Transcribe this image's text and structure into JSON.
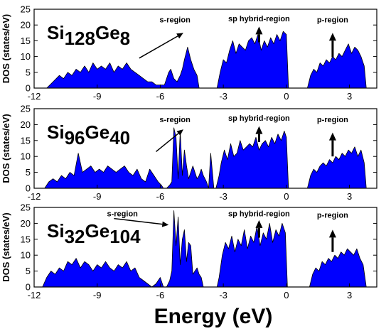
{
  "figure": {
    "xlabel": "Energy (eV)",
    "ylabel": "DOS (states/eV)",
    "colors": {
      "fill": "#0000ff",
      "outline": "#000000",
      "axis": "#000000"
    }
  },
  "chart_data": [
    {
      "type": "area",
      "composition": {
        "a": "Si",
        "a_sub": "128",
        "b": "Ge",
        "b_sub": "8"
      },
      "xlim": [
        -12,
        4.3
      ],
      "ylim": [
        0,
        25
      ],
      "xticks": [
        -12,
        -9,
        -6,
        -3,
        0,
        3
      ],
      "yticks": [
        0,
        5,
        10,
        15,
        20,
        25
      ],
      "xlabel": "",
      "ylabel": "DOS (states/eV)",
      "annotations": [
        {
          "text": "s-region",
          "x": -5.3,
          "y": 20.8,
          "arrow_from": [
            -7.0,
            9.5
          ],
          "arrow_to": [
            -4.9,
            17.5
          ]
        },
        {
          "text": "sp hybrid-region",
          "x": -1.3,
          "y": 21.2,
          "arrow_from": [
            -1.3,
            14.5
          ],
          "arrow_to": [
            -1.3,
            19.5
          ]
        },
        {
          "text": "p-region",
          "x": 2.2,
          "y": 20.8,
          "arrow_from": [
            2.2,
            9.8
          ],
          "arrow_to": [
            2.2,
            17.5
          ]
        }
      ],
      "series": [
        {
          "x": [
            -11.4,
            -11.1,
            -10.8,
            -10.6,
            -10.4,
            -10.2,
            -10.0,
            -9.8,
            -9.6,
            -9.4,
            -9.2,
            -9.0,
            -8.8,
            -8.6,
            -8.4,
            -8.2,
            -8.0,
            -7.8,
            -7.6,
            -7.4,
            -7.2,
            -7.0,
            -6.8,
            -6.6,
            -6.4,
            -6.2,
            -6.0,
            -5.8,
            -5.6,
            -5.5,
            -5.35,
            -5.2,
            -5.05,
            -4.95,
            -4.85,
            -4.7,
            -4.55,
            -4.4,
            -4.25,
            -4.15,
            -3.3,
            -3.15,
            -3.0,
            -2.85,
            -2.7,
            -2.55,
            -2.4,
            -2.25,
            -2.1,
            -1.95,
            -1.8,
            -1.65,
            -1.5,
            -1.35,
            -1.2,
            -1.05,
            -0.9,
            -0.75,
            -0.6,
            -0.45,
            -0.3,
            -0.15,
            0.0,
            0.1,
            1.0,
            1.15,
            1.3,
            1.45,
            1.6,
            1.75,
            1.9,
            2.05,
            2.2,
            2.35,
            2.5,
            2.65,
            2.8,
            2.95,
            3.1,
            3.25,
            3.4,
            3.55,
            3.7,
            3.8
          ],
          "y": [
            0,
            2,
            4,
            3,
            5,
            4,
            6,
            5,
            7,
            5,
            8,
            6,
            7,
            6,
            8,
            5,
            7,
            6,
            8,
            6,
            5,
            4,
            3,
            2,
            2,
            1,
            1,
            1,
            5,
            6,
            3,
            2,
            4,
            6,
            9,
            13,
            9,
            6,
            4,
            0,
            0,
            5,
            9,
            8,
            12,
            15,
            11,
            14,
            13,
            12,
            15,
            16,
            14,
            17,
            12,
            15,
            13,
            16,
            14,
            17,
            15,
            18,
            17,
            0,
            0,
            4,
            6,
            5,
            8,
            7,
            9,
            8,
            10,
            9,
            11,
            10,
            12,
            14,
            11,
            13,
            12,
            10,
            7,
            0
          ]
        }
      ]
    },
    {
      "type": "area",
      "composition": {
        "a": "Si",
        "a_sub": "96",
        "b": "Ge",
        "b_sub": "40"
      },
      "xlim": [
        -12,
        4.3
      ],
      "ylim": [
        0,
        25
      ],
      "xticks": [
        -12,
        -9,
        -6,
        -3,
        0,
        3
      ],
      "yticks": [
        0,
        5,
        10,
        15,
        20,
        25
      ],
      "xlabel": "",
      "ylabel": "DOS (states/eV)",
      "annotations": [
        {
          "text": "s-region",
          "x": -5.3,
          "y": 20.8,
          "arrow_from": [
            -6.2,
            11.5
          ],
          "arrow_to": [
            -4.9,
            18.5
          ]
        },
        {
          "text": "sp hybrid-region",
          "x": -1.3,
          "y": 21.2,
          "arrow_from": [
            -1.3,
            14.5
          ],
          "arrow_to": [
            -1.3,
            19.5
          ]
        },
        {
          "text": "p-region",
          "x": 2.2,
          "y": 20.8,
          "arrow_from": [
            2.2,
            10.0
          ],
          "arrow_to": [
            2.2,
            17.5
          ]
        }
      ],
      "series": [
        {
          "x": [
            -11.5,
            -11.3,
            -11.1,
            -10.9,
            -10.7,
            -10.5,
            -10.3,
            -10.1,
            -9.9,
            -9.7,
            -9.5,
            -9.3,
            -9.1,
            -8.9,
            -8.7,
            -8.5,
            -8.3,
            -8.1,
            -7.9,
            -7.7,
            -7.5,
            -7.3,
            -7.1,
            -6.9,
            -6.7,
            -6.5,
            -6.3,
            -6.1,
            -5.95,
            -5.85,
            -5.7,
            -5.55,
            -5.45,
            -5.35,
            -5.25,
            -5.15,
            -5.05,
            -4.95,
            -4.85,
            -4.75,
            -4.65,
            -4.55,
            -4.45,
            -4.35,
            -4.25,
            -4.15,
            -4.05,
            -3.95,
            -3.8,
            -3.7,
            -3.6,
            -3.45,
            -3.35,
            -3.2,
            -3.1,
            -2.95,
            -2.8,
            -2.65,
            -2.5,
            -2.35,
            -2.2,
            -2.05,
            -1.9,
            -1.75,
            -1.6,
            -1.45,
            -1.3,
            -1.15,
            -1.0,
            -0.85,
            -0.7,
            -0.55,
            -0.4,
            -0.25,
            -0.1,
            0.0,
            0.1,
            1.0,
            1.15,
            1.3,
            1.45,
            1.6,
            1.75,
            1.9,
            2.05,
            2.2,
            2.35,
            2.5,
            2.65,
            2.8,
            2.95,
            3.1,
            3.25,
            3.4,
            3.55,
            3.7,
            3.8
          ],
          "y": [
            0,
            2,
            3,
            2,
            4,
            3,
            5,
            4,
            11,
            5,
            6,
            7,
            5,
            6,
            5,
            7,
            6,
            5,
            6,
            7,
            5,
            4,
            6,
            3,
            2,
            6,
            4,
            2,
            1,
            0,
            0,
            1,
            2,
            19,
            16,
            3,
            18,
            4,
            12,
            7,
            3,
            5,
            7,
            5,
            3,
            4,
            6,
            4,
            2,
            0,
            11,
            0,
            0,
            4,
            8,
            12,
            9,
            14,
            10,
            11,
            15,
            12,
            13,
            14,
            13,
            16,
            12,
            14,
            15,
            13,
            16,
            14,
            17,
            15,
            18,
            16,
            0,
            0,
            4,
            6,
            5,
            7,
            8,
            7,
            9,
            8,
            10,
            9,
            11,
            10,
            12,
            11,
            13,
            10,
            12,
            8,
            0
          ]
        }
      ]
    },
    {
      "type": "area",
      "composition": {
        "a": "Si",
        "a_sub": "32",
        "b": "Ge",
        "b_sub": "104"
      },
      "xlim": [
        -12,
        4.3
      ],
      "ylim": [
        0,
        25
      ],
      "xticks": [
        -12,
        -9,
        -6,
        -3,
        0,
        3
      ],
      "yticks": [
        0,
        5,
        10,
        15,
        20,
        25
      ],
      "xlabel": "Energy (eV)",
      "ylabel": "DOS (states/eV)",
      "annotations": [
        {
          "text": "s-region",
          "x": -7.8,
          "y": 22.2,
          "arrow_from": [
            -8.2,
            21.5
          ],
          "arrow_to": [
            -5.6,
            19.5
          ]
        },
        {
          "text": "sp hybrid-region",
          "x": -1.3,
          "y": 22.2,
          "arrow_from": [
            -1.3,
            15.5
          ],
          "arrow_to": [
            -1.3,
            21.0
          ]
        },
        {
          "text": "p-region",
          "x": 2.2,
          "y": 21.8,
          "arrow_from": [
            2.2,
            11.0
          ],
          "arrow_to": [
            2.2,
            18.0
          ]
        }
      ],
      "series": [
        {
          "x": [
            -11.6,
            -11.4,
            -11.2,
            -11.0,
            -10.8,
            -10.6,
            -10.4,
            -10.2,
            -10.0,
            -9.8,
            -9.6,
            -9.4,
            -9.2,
            -9.0,
            -8.8,
            -8.6,
            -8.4,
            -8.2,
            -8.0,
            -7.8,
            -7.6,
            -7.4,
            -7.2,
            -7.0,
            -6.8,
            -6.6,
            -6.4,
            -6.2,
            -6.0,
            -5.85,
            -5.7,
            -5.55,
            -5.45,
            -5.35,
            -5.25,
            -5.15,
            -5.05,
            -4.95,
            -4.85,
            -4.75,
            -4.65,
            -4.55,
            -4.45,
            -4.35,
            -4.25,
            -4.15,
            -4.05,
            -3.95,
            -3.3,
            -3.2,
            -3.05,
            -2.9,
            -2.75,
            -2.6,
            -2.45,
            -2.3,
            -2.15,
            -2.0,
            -1.85,
            -1.7,
            -1.55,
            -1.4,
            -1.25,
            -1.1,
            -0.95,
            -0.8,
            -0.65,
            -0.5,
            -0.35,
            -0.2,
            -0.05,
            0.05,
            1.1,
            1.25,
            1.4,
            1.55,
            1.7,
            1.85,
            2.0,
            2.15,
            2.3,
            2.45,
            2.6,
            2.75,
            2.9,
            3.05,
            3.2,
            3.35,
            3.5,
            3.65,
            3.8
          ],
          "y": [
            0,
            3,
            5,
            4,
            6,
            5,
            8,
            7,
            9,
            6,
            8,
            7,
            5,
            7,
            6,
            8,
            6,
            5,
            7,
            6,
            8,
            5,
            6,
            3,
            2,
            1,
            0,
            1,
            3,
            0,
            0,
            2,
            5,
            24,
            13,
            22,
            7,
            15,
            18,
            8,
            14,
            13,
            4,
            5,
            6,
            4,
            3,
            0,
            0,
            3,
            10,
            14,
            12,
            16,
            11,
            15,
            13,
            18,
            12,
            16,
            14,
            19,
            13,
            17,
            15,
            20,
            14,
            18,
            16,
            20,
            17,
            0,
            0,
            4,
            6,
            5,
            8,
            7,
            9,
            8,
            10,
            9,
            11,
            10,
            12,
            11,
            10,
            12,
            9,
            7,
            0
          ]
        }
      ]
    }
  ]
}
